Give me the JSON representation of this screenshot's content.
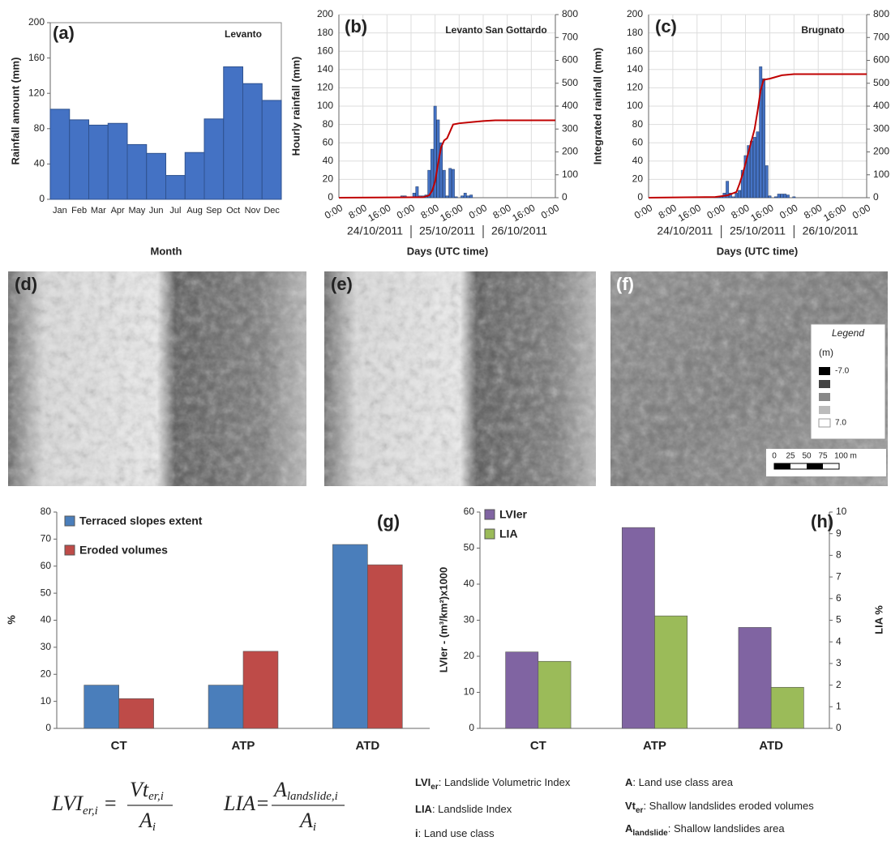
{
  "chart_data": [
    {
      "type": "bar",
      "panel_label": "(a)",
      "annotation": "Levanto",
      "xlabel": "Month",
      "ylabel": "Rainfall amount (mm)",
      "categories": [
        "Jan",
        "Feb",
        "Mar",
        "Apr",
        "May",
        "Jun",
        "Jul",
        "Aug",
        "Sep",
        "Oct",
        "Nov",
        "Dec"
      ],
      "values": [
        102,
        90,
        84,
        86,
        62,
        52,
        27,
        53,
        91,
        150,
        131,
        112
      ],
      "color": "#4472c4",
      "ylim": [
        0,
        200
      ],
      "yticks": [
        0,
        40,
        80,
        120,
        160,
        200
      ],
      "grid": false
    },
    {
      "type": "combo",
      "panel_label": "(b)",
      "annotation": "Levanto San Gottardo",
      "xlabel": "Days (UTC time)",
      "ylabel": "Hourly rainfall (mm)",
      "y2label": "Integrated rainfall (mm)",
      "day_labels": [
        "24/10/2011",
        "25/10/2011",
        "26/10/2011"
      ],
      "xlim": [
        0,
        72
      ],
      "xticks": [
        {
          "value": 0,
          "label": "0:00"
        },
        {
          "value": 8,
          "label": "8:00"
        },
        {
          "value": 16,
          "label": "16:00"
        },
        {
          "value": 24,
          "label": "0:00"
        },
        {
          "value": 32,
          "label": "8:00"
        },
        {
          "value": 40,
          "label": "16:00"
        },
        {
          "value": 48,
          "label": "0:00"
        },
        {
          "value": 56,
          "label": "8:00"
        },
        {
          "value": 64,
          "label": "16:00"
        },
        {
          "value": 72,
          "label": "0:00"
        }
      ],
      "ylim": [
        0,
        200
      ],
      "yticks": [
        0,
        20,
        40,
        60,
        80,
        100,
        120,
        140,
        160,
        180,
        200
      ],
      "y2lim": [
        0,
        800
      ],
      "y2ticks": [
        0,
        100,
        200,
        300,
        400,
        500,
        600,
        700,
        800
      ],
      "grid": true,
      "series": [
        {
          "kind": "bar",
          "color": "#4472c4",
          "x": [
            21,
            22,
            23,
            25,
            26,
            27,
            28,
            29,
            30,
            31,
            32,
            33,
            34,
            35,
            36,
            37,
            38,
            39,
            41,
            42,
            43,
            44
          ],
          "values": [
            2,
            2,
            1,
            5,
            12,
            2,
            2,
            3,
            30,
            53,
            100,
            85,
            60,
            30,
            2,
            32,
            31,
            1,
            2,
            5,
            2,
            3
          ]
        },
        {
          "kind": "line",
          "axis": "y2",
          "color": "#c00000",
          "x": [
            0,
            28,
            30,
            31,
            32,
            33,
            34,
            35,
            36,
            37,
            38,
            40,
            44,
            48,
            52,
            72
          ],
          "values": [
            0,
            2,
            10,
            30,
            70,
            150,
            220,
            250,
            260,
            290,
            320,
            325,
            330,
            335,
            338,
            338
          ]
        }
      ]
    },
    {
      "type": "combo",
      "panel_label": "(c)",
      "annotation": "Brugnato",
      "xlabel": "Days (UTC time)",
      "day_labels": [
        "24/10/2011",
        "25/10/2011",
        "26/10/2011"
      ],
      "xlim": [
        0,
        72
      ],
      "xticks": [
        {
          "value": 0,
          "label": "0:00"
        },
        {
          "value": 8,
          "label": "8:00"
        },
        {
          "value": 16,
          "label": "16:00"
        },
        {
          "value": 24,
          "label": "0:00"
        },
        {
          "value": 32,
          "label": "8:00"
        },
        {
          "value": 40,
          "label": "16:00"
        },
        {
          "value": 48,
          "label": "0:00"
        },
        {
          "value": 56,
          "label": "8:00"
        },
        {
          "value": 64,
          "label": "16:00"
        },
        {
          "value": 72,
          "label": "0:00"
        }
      ],
      "ylim": [
        0,
        200
      ],
      "yticks": [
        0,
        20,
        40,
        60,
        80,
        100,
        120,
        140,
        160,
        180,
        200
      ],
      "y2lim": [
        0,
        800
      ],
      "y2ticks": [
        0,
        100,
        200,
        300,
        400,
        500,
        600,
        700,
        800
      ],
      "grid": true,
      "series": [
        {
          "kind": "bar",
          "color": "#4472c4",
          "x": [
            22,
            23,
            24,
            25,
            26,
            27,
            28,
            29,
            30,
            31,
            32,
            33,
            34,
            35,
            36,
            37,
            38,
            39,
            40,
            42,
            43,
            44,
            45,
            46,
            48
          ],
          "values": [
            1,
            1,
            1,
            5,
            18,
            5,
            1,
            5,
            8,
            30,
            46,
            57,
            62,
            66,
            72,
            143,
            130,
            35,
            2,
            1,
            4,
            4,
            4,
            3,
            1
          ]
        },
        {
          "kind": "line",
          "axis": "y2",
          "color": "#c00000",
          "x": [
            0,
            22,
            26,
            29,
            30,
            31,
            32,
            33,
            34,
            35,
            36,
            37,
            38,
            40,
            44,
            48,
            72
          ],
          "values": [
            0,
            3,
            10,
            25,
            60,
            100,
            150,
            200,
            250,
            300,
            380,
            470,
            515,
            520,
            535,
            540,
            540
          ]
        }
      ]
    },
    {
      "type": "grouped_bar",
      "panel_label": "(g)",
      "ylabel": "%",
      "categories": [
        "CT",
        "ATP",
        "ATD"
      ],
      "ylim": [
        0,
        80
      ],
      "yticks": [
        0,
        10,
        20,
        30,
        40,
        50,
        60,
        70,
        80
      ],
      "grid": false,
      "series": [
        {
          "name": "Terraced slopes extent",
          "color": "#4a7ebb",
          "values": [
            16,
            16,
            68
          ]
        },
        {
          "name": "Eroded volumes",
          "color": "#be4b48",
          "values": [
            11,
            28.5,
            60.5
          ]
        }
      ]
    },
    {
      "type": "grouped_bar",
      "panel_label": "(h)",
      "ylabel": "LVIer - (m³/km²)x1000",
      "y2label": "LIA %",
      "categories": [
        "CT",
        "ATP",
        "ATD"
      ],
      "ylim": [
        0,
        60
      ],
      "yticks": [
        0,
        10,
        20,
        30,
        40,
        50,
        60
      ],
      "y2lim": [
        0,
        10
      ],
      "y2ticks": [
        0,
        1,
        2,
        3,
        4,
        5,
        6,
        7,
        8,
        9,
        10
      ],
      "grid": false,
      "series": [
        {
          "name": "LVIer",
          "color": "#8064a2",
          "values": [
            21.2,
            55.7,
            28
          ]
        },
        {
          "name": "LIA",
          "axis": "y2",
          "color": "#9bbb59",
          "values": [
            3.1,
            5.2,
            1.9
          ]
        }
      ]
    }
  ],
  "images": [
    {
      "label": "(d)"
    },
    {
      "label": "(e)"
    },
    {
      "label": "(f)"
    }
  ],
  "map_legend": {
    "title": "Legend",
    "unit": "(m)",
    "min_label": "-7.0",
    "max_label": "7.0",
    "scale_labels": [
      "0",
      "25",
      "50",
      "75",
      "100 m"
    ]
  },
  "formulas": [
    {
      "lhs": "LVI",
      "lhs_sub": "er,i",
      "num": "Vt",
      "num_sub": "er,i",
      "den": "A",
      "den_sub": "i"
    },
    {
      "lhs": "LIA",
      "num": "A",
      "num_sub": "landslide,i",
      "den": "A",
      "den_sub": "i"
    }
  ],
  "definitions": [
    {
      "term": "LVI",
      "sub": "er",
      "text": ": Landslide Volumetric Index"
    },
    {
      "term": "LIA",
      "text": ": Landslide Index"
    },
    {
      "term": "i",
      "text": ": Land use class"
    },
    {
      "term": "A",
      "text": ": Land use class area"
    },
    {
      "term": "Vt",
      "sub": "er",
      "text": ": Shallow landslides eroded volumes"
    },
    {
      "term": "A",
      "sub": "landslide",
      "text": ": Shallow landslides area"
    }
  ]
}
